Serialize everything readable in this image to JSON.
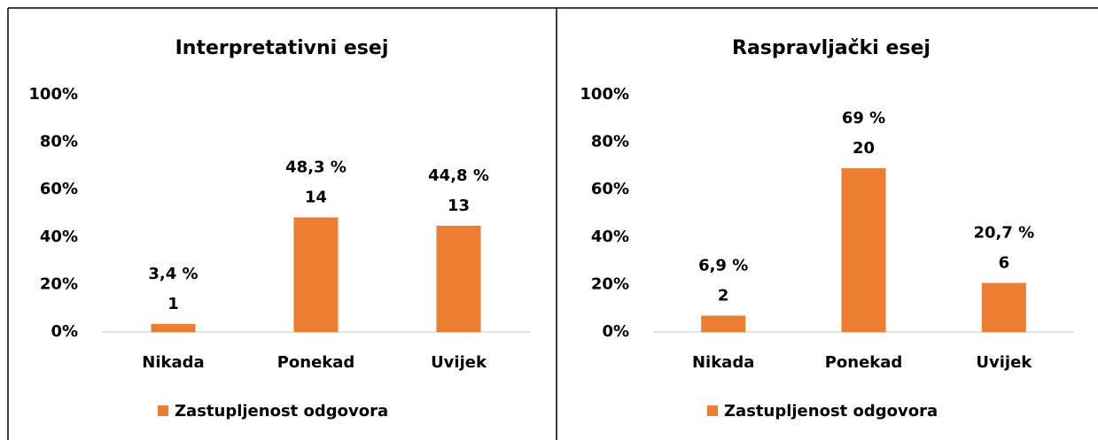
{
  "chart_data": [
    {
      "type": "bar",
      "title": "Interpretativni esej",
      "categories": [
        "Nikada",
        "Ponekad",
        "Uvijek"
      ],
      "series": [
        {
          "name": "Zastupljenost odgovora",
          "color": "#ed7d31",
          "values": [
            3.4,
            48.3,
            44.8
          ],
          "value_labels": [
            "3,4 %",
            "48,3 %",
            "44,8 %"
          ],
          "counts": [
            1,
            14,
            13
          ]
        }
      ],
      "ylim": [
        0,
        100
      ],
      "yticks": [
        {
          "value": 0,
          "label": "0%"
        },
        {
          "value": 20,
          "label": "20%"
        },
        {
          "value": 40,
          "label": "40%"
        },
        {
          "value": 60,
          "label": "60%"
        },
        {
          "value": 80,
          "label": "80%"
        },
        {
          "value": 100,
          "label": "100%"
        }
      ],
      "grid": false,
      "legend": "bottom"
    },
    {
      "type": "bar",
      "title": "Raspravljački esej",
      "categories": [
        "Nikada",
        "Ponekad",
        "Uvijek"
      ],
      "series": [
        {
          "name": "Zastupljenost odgovora",
          "color": "#ed7d31",
          "values": [
            6.9,
            69,
            20.7
          ],
          "value_labels": [
            "6,9 %",
            "69 %",
            "20,7 %"
          ],
          "counts": [
            2,
            20,
            6
          ]
        }
      ],
      "ylim": [
        0,
        100
      ],
      "yticks": [
        {
          "value": 0,
          "label": "0%"
        },
        {
          "value": 20,
          "label": "20%"
        },
        {
          "value": 40,
          "label": "40%"
        },
        {
          "value": 60,
          "label": "60%"
        },
        {
          "value": 80,
          "label": "80%"
        },
        {
          "value": 100,
          "label": "100%"
        }
      ],
      "grid": false,
      "legend": "bottom"
    }
  ]
}
